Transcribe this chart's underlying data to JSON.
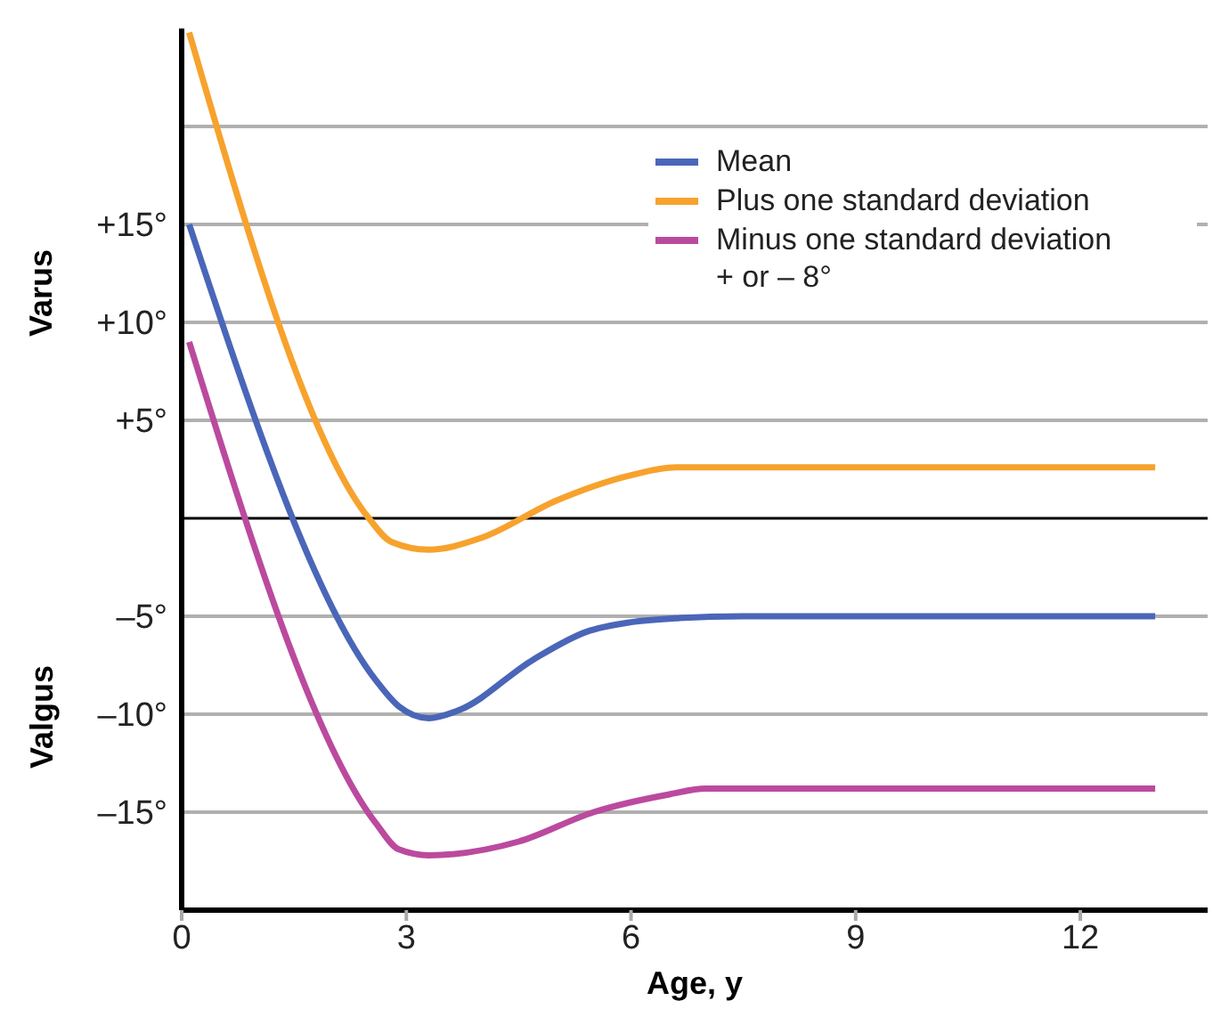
{
  "chart_data": {
    "type": "line",
    "xlabel": "Age, y",
    "ylabel": "Varus",
    "annotations": [
      "Valgus"
    ],
    "xlim": [
      0,
      13.7
    ],
    "xticks": [
      0,
      3,
      6,
      9,
      12
    ],
    "ylim": [
      -20,
      25
    ],
    "yticks": [
      {
        "value": -20,
        "label": null
      },
      {
        "value": -15,
        "label": "–15°"
      },
      {
        "value": -10,
        "label": "–10°"
      },
      {
        "value": -5,
        "label": "–5°"
      },
      {
        "value": 5,
        "label": "+5°"
      },
      {
        "value": 10,
        "label": "+10°"
      },
      {
        "value": 15,
        "label": "+15°"
      },
      {
        "value": 20,
        "label": null
      }
    ],
    "ref_lines": [
      {
        "axis": "y",
        "value": 0,
        "color": "#000000"
      }
    ],
    "grid": "y",
    "legend": "top right",
    "marker": "none",
    "line_style": "solid",
    "series": [
      {
        "name": "Mean",
        "color": "#4a66b8",
        "x": [
          0.1,
          2.6,
          2.9,
          3.3,
          3.7,
          4.7,
          5.4,
          6.0,
          6.6,
          7.5,
          13
        ],
        "values": [
          15,
          -8.3,
          -9.6,
          -10.2,
          -9.8,
          -7.2,
          -5.8,
          -5.3,
          -5.1,
          -5,
          -5
        ]
      },
      {
        "name": "Plus one standard deviation",
        "color": "#f7a22d",
        "x": [
          0.1,
          2.5,
          2.8,
          3.3,
          4.0,
          5.0,
          6.0,
          6.6,
          13
        ],
        "values": [
          24.8,
          0,
          -1.2,
          -1.6,
          -1.0,
          0.9,
          2.2,
          2.6,
          2.6
        ]
      },
      {
        "name": "Minus one standard deviation + or – 8°",
        "color": "#bb4a9e",
        "x": [
          0.1,
          2.6,
          2.9,
          3.3,
          4.5,
          5.5,
          6.5,
          7.0,
          13
        ],
        "values": [
          9,
          -15.6,
          -16.9,
          -17.2,
          -16.5,
          -15,
          -14.1,
          -13.8,
          -13.8
        ]
      }
    ]
  }
}
